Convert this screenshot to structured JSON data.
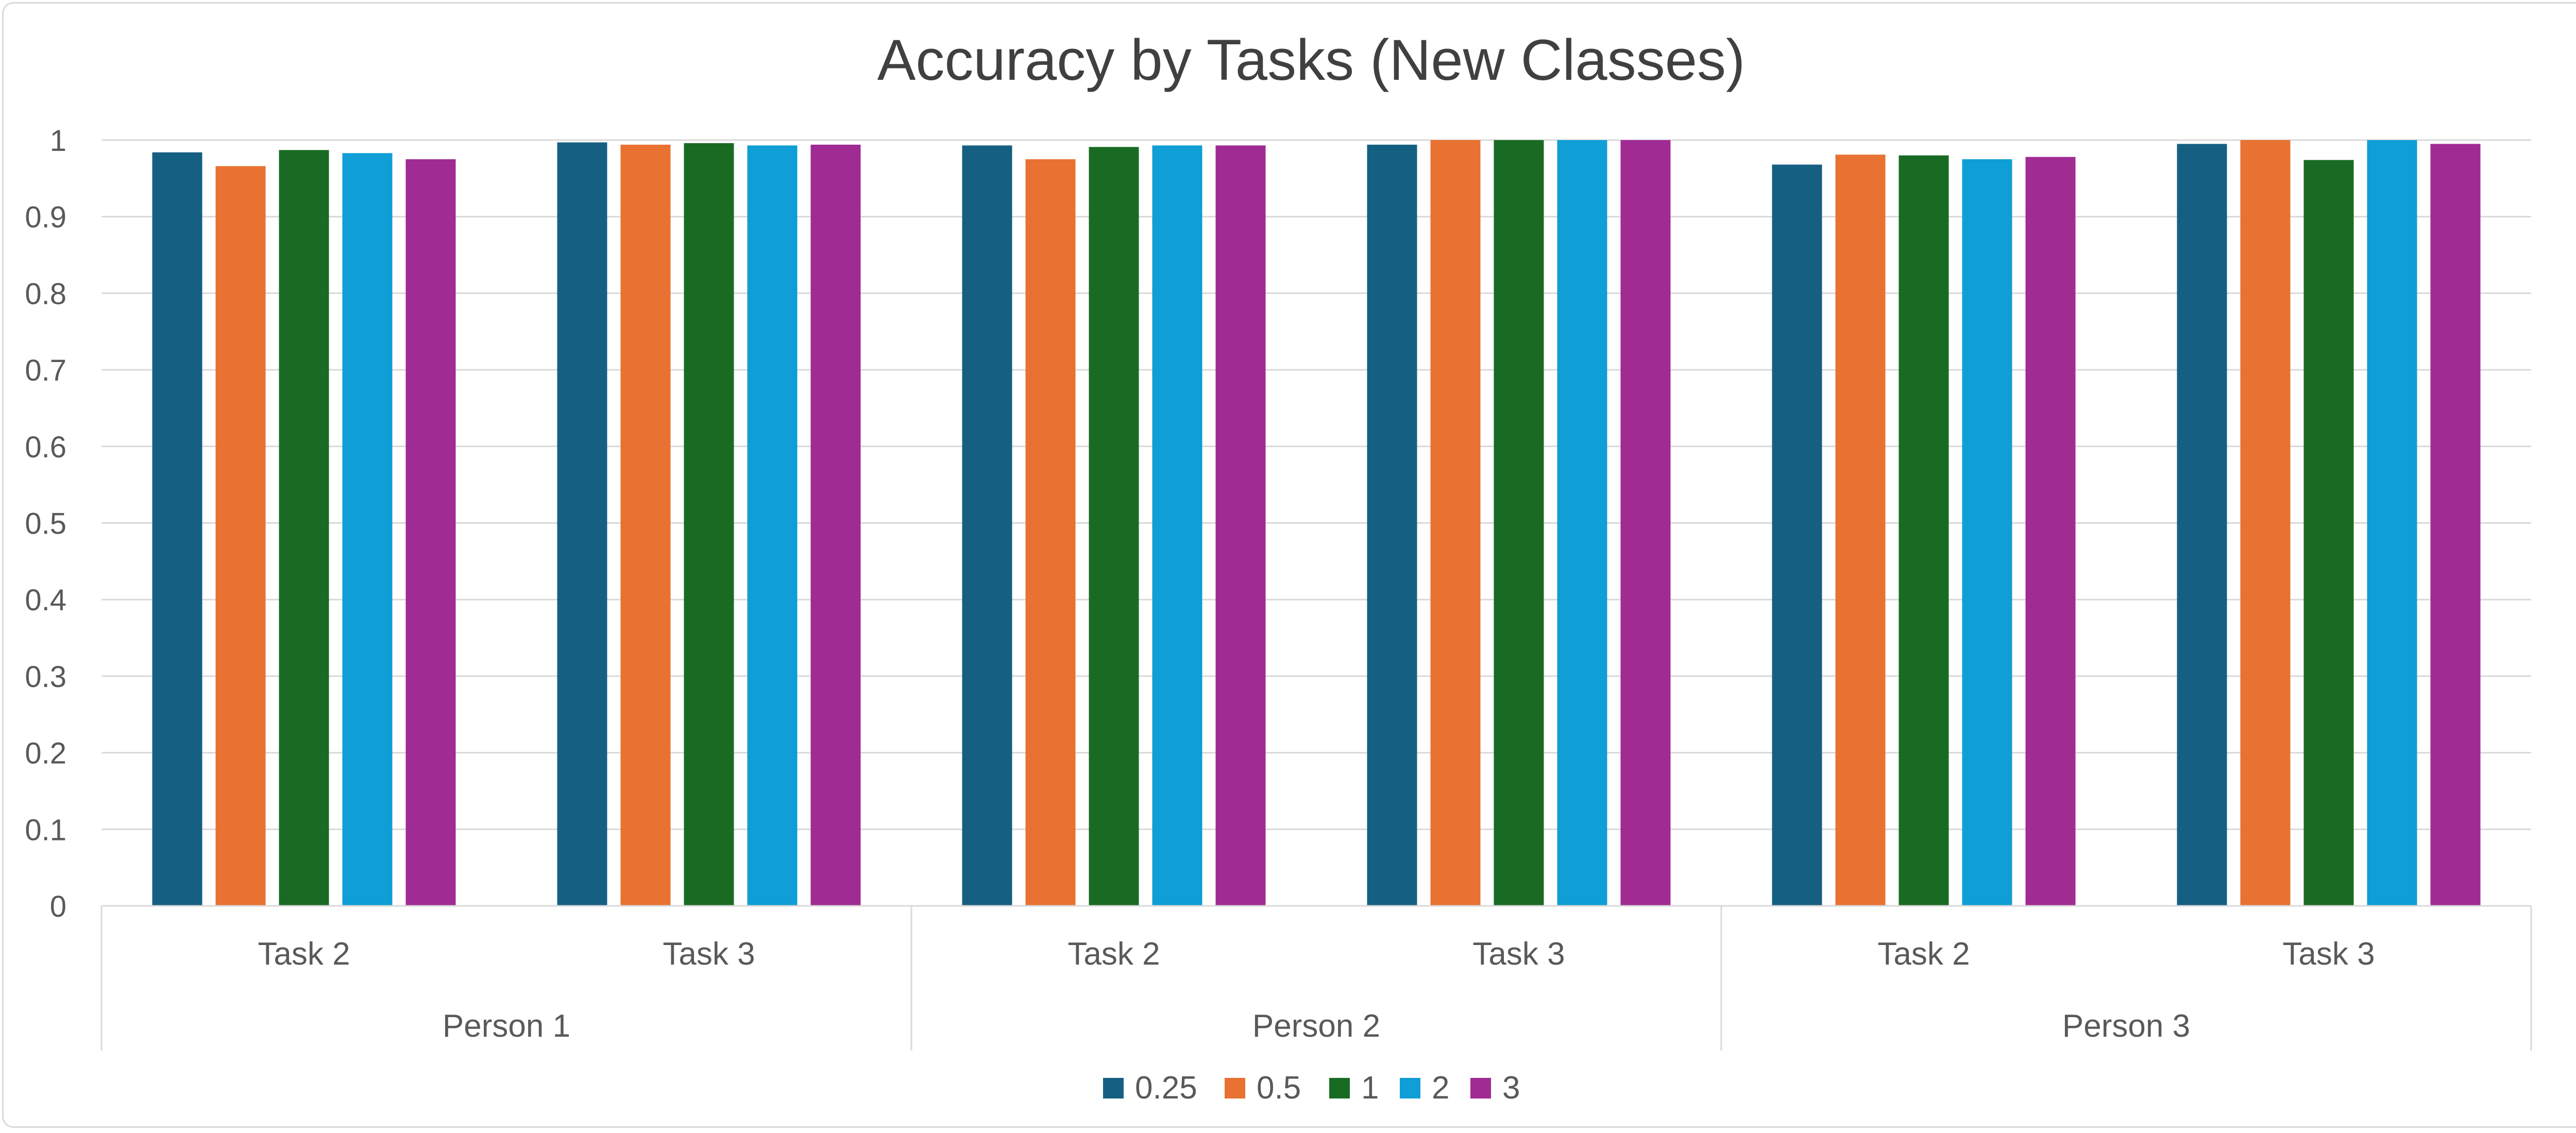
{
  "chart_data": {
    "type": "bar",
    "title": "Accuracy by Tasks (New Classes)",
    "xlabel": "",
    "ylabel": "",
    "ylim": [
      0,
      1
    ],
    "y_ticks": [
      0,
      0.1,
      0.2,
      0.3,
      0.4,
      0.5,
      0.6,
      0.7,
      0.8,
      0.9,
      1
    ],
    "y_tick_labels": [
      "0",
      "0.1",
      "0.2",
      "0.3",
      "0.4",
      "0.5",
      "0.6",
      "0.7",
      "0.8",
      "0.9",
      "1"
    ],
    "grid": true,
    "legend_position": "bottom",
    "groups": [
      {
        "label": "Person 1",
        "categories": [
          "Task 2",
          "Task 3"
        ]
      },
      {
        "label": "Person 2",
        "categories": [
          "Task 2",
          "Task 3"
        ]
      },
      {
        "label": "Person 3",
        "categories": [
          "Task 2",
          "Task 3"
        ]
      }
    ],
    "categories": [
      "Task 2",
      "Task 3",
      "Task 2",
      "Task 3",
      "Task 2",
      "Task 3"
    ],
    "series": [
      {
        "name": "0.25",
        "color": "#156082",
        "values": [
          0.984,
          0.997,
          0.993,
          0.994,
          0.968,
          0.995
        ]
      },
      {
        "name": "0.5",
        "color": "#E97132",
        "values": [
          0.966,
          0.994,
          0.975,
          1.0,
          0.981,
          1.0
        ]
      },
      {
        "name": "1",
        "color": "#196B24",
        "values": [
          0.987,
          0.996,
          0.991,
          1.0,
          0.98,
          0.974
        ]
      },
      {
        "name": "2",
        "color": "#0F9ED5",
        "values": [
          0.983,
          0.993,
          0.993,
          1.0,
          0.975,
          1.0
        ]
      },
      {
        "name": "3",
        "color": "#A02B93",
        "values": [
          0.975,
          0.994,
          0.993,
          1.0,
          0.978,
          0.995
        ]
      }
    ]
  }
}
